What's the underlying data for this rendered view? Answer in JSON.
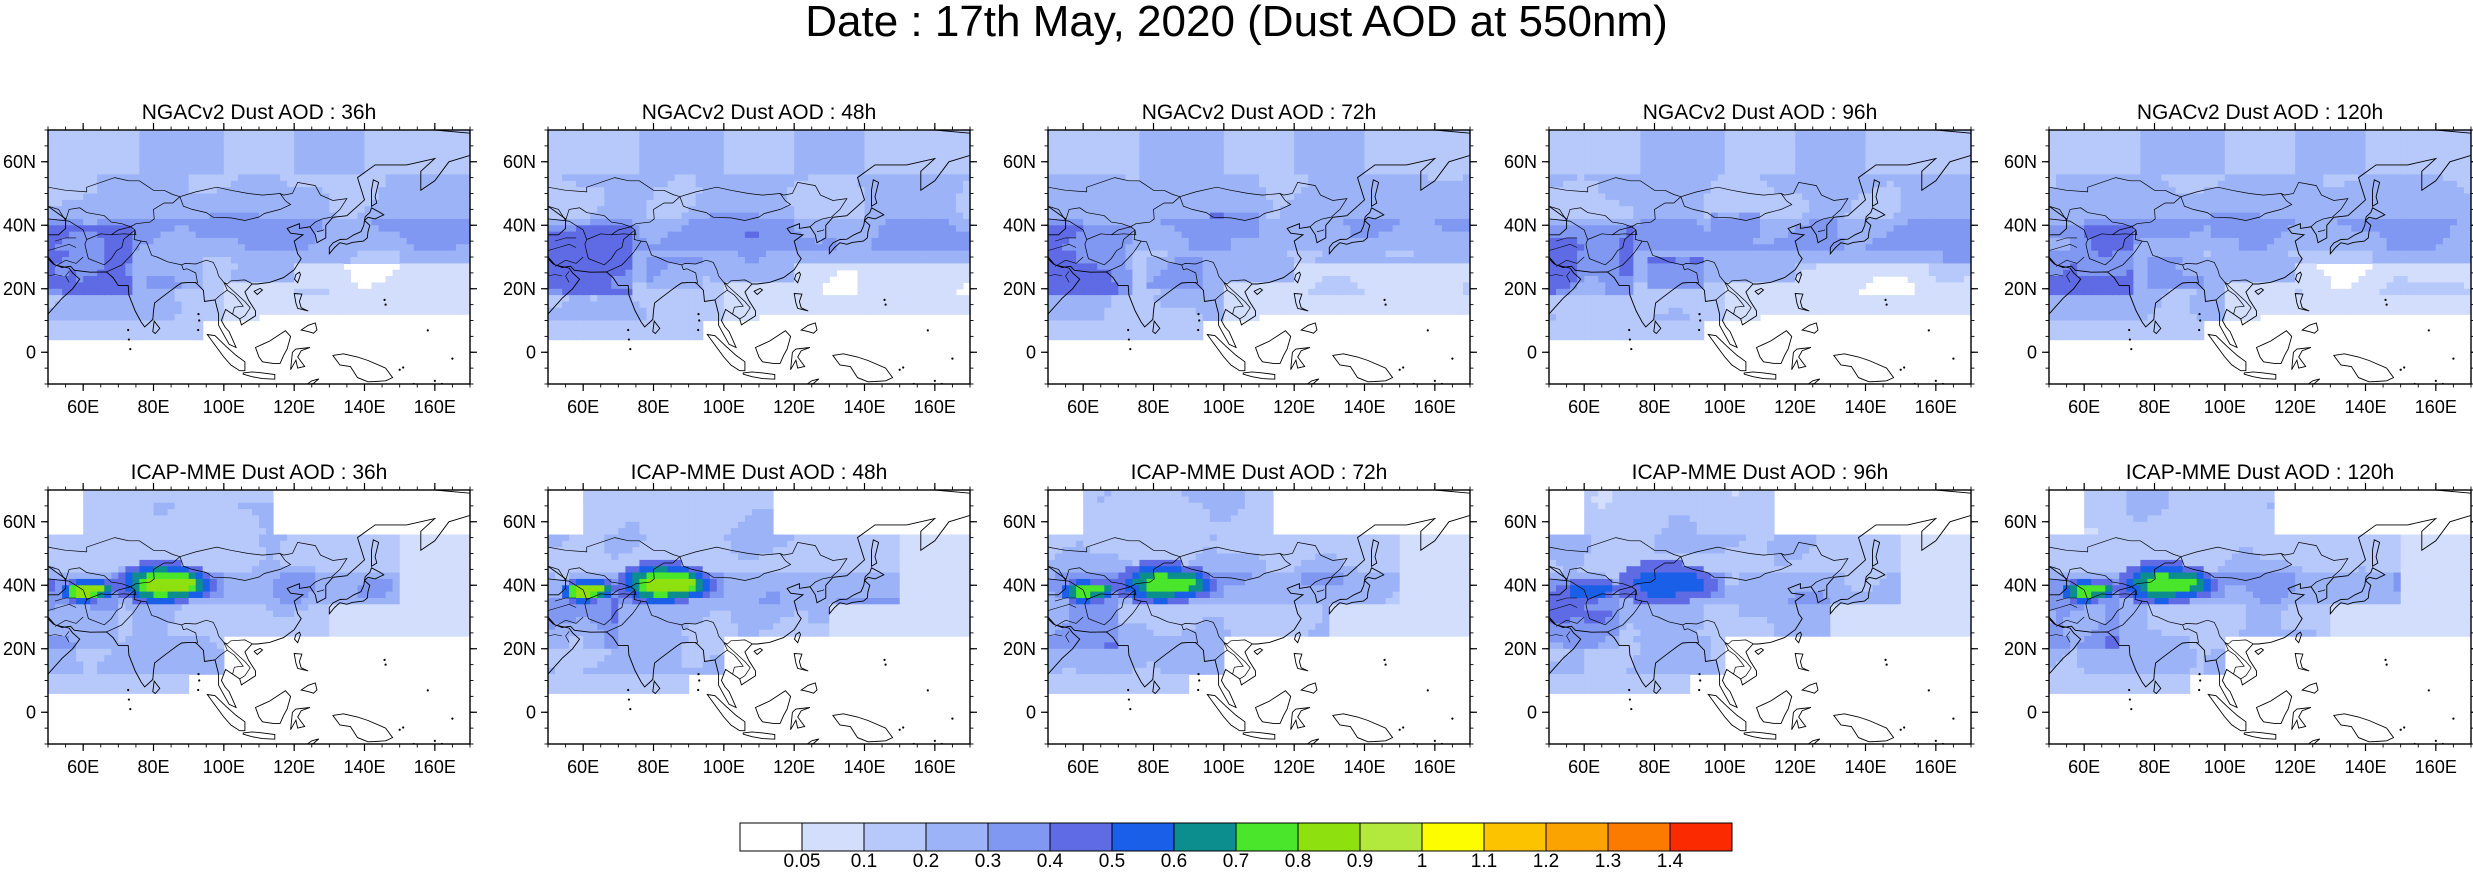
{
  "title": "Date : 17th May, 2020 (Dust AOD at 550nm)",
  "lon_ticks": [
    "60E",
    "80E",
    "100E",
    "120E",
    "140E",
    "160E"
  ],
  "lat_ticks": [
    "60N",
    "40N",
    "20N",
    "0"
  ],
  "lon_values": [
    60,
    80,
    100,
    120,
    140,
    160
  ],
  "lat_values": [
    60,
    40,
    20,
    0
  ],
  "map_extent": {
    "lon": [
      50,
      170
    ],
    "lat": [
      -10,
      70
    ]
  },
  "panels": [
    {
      "title": "NGACv2 Dust AOD : 36h",
      "model": "NGACv2",
      "lead_hours": 36,
      "max_level": 5
    },
    {
      "title": "NGACv2 Dust AOD : 48h",
      "model": "NGACv2",
      "lead_hours": 48,
      "max_level": 5
    },
    {
      "title": "NGACv2 Dust AOD : 72h",
      "model": "NGACv2",
      "lead_hours": 72,
      "max_level": 5
    },
    {
      "title": "NGACv2 Dust AOD : 96h",
      "model": "NGACv2",
      "lead_hours": 96,
      "max_level": 5
    },
    {
      "title": "NGACv2 Dust AOD : 120h",
      "model": "NGACv2",
      "lead_hours": 120,
      "max_level": 5
    },
    {
      "title": "ICAP-MME Dust AOD : 36h",
      "model": "ICAP-MME",
      "lead_hours": 36,
      "max_level": 9
    },
    {
      "title": "ICAP-MME Dust AOD : 48h",
      "model": "ICAP-MME",
      "lead_hours": 48,
      "max_level": 9
    },
    {
      "title": "ICAP-MME Dust AOD : 72h",
      "model": "ICAP-MME",
      "lead_hours": 72,
      "max_level": 8
    },
    {
      "title": "ICAP-MME Dust AOD : 96h",
      "model": "ICAP-MME",
      "lead_hours": 96,
      "max_level": 6
    },
    {
      "title": "ICAP-MME Dust AOD : 120h",
      "model": "ICAP-MME",
      "lead_hours": 120,
      "max_level": 8
    }
  ],
  "colorbar": {
    "labels": [
      "0.05",
      "0.1",
      "0.2",
      "0.3",
      "0.4",
      "0.5",
      "0.6",
      "0.7",
      "0.8",
      "0.9",
      "1",
      "1.1",
      "1.2",
      "1.3",
      "1.4"
    ],
    "colors": [
      "#ffffff",
      "#d2defc",
      "#b7c8fa",
      "#9cb3f7",
      "#8098f2",
      "#5e6be4",
      "#1a5fe8",
      "#0d8e8e",
      "#49e62b",
      "#8ee10e",
      "#b3e83c",
      "#fdfd00",
      "#fbc300",
      "#fba300",
      "#fb7a00",
      "#fb2a00"
    ]
  }
}
